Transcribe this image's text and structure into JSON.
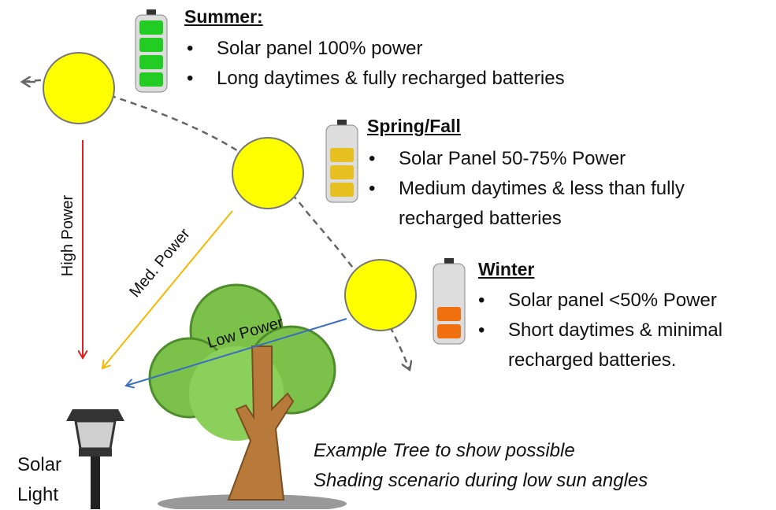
{
  "seasons": [
    {
      "title": "Summer:",
      "bullets": [
        "Solar panel 100% power",
        "Long daytimes & fully recharged batteries"
      ]
    },
    {
      "title": "Spring/Fall",
      "bullets": [
        "Solar Panel 50-75% Power",
        "Medium daytimes & less  than fully recharged batteries"
      ]
    },
    {
      "title": "Winter",
      "bullets": [
        "Solar panel <50% Power",
        "Short daytimes & minimal recharged batteries."
      ]
    }
  ],
  "rays": [
    "High Power",
    "Med. Power",
    "Low Power"
  ],
  "caption": [
    "Example Tree to show possible",
    "Shading scenario during low sun angles"
  ],
  "light_label": [
    "Solar",
    "Light"
  ]
}
